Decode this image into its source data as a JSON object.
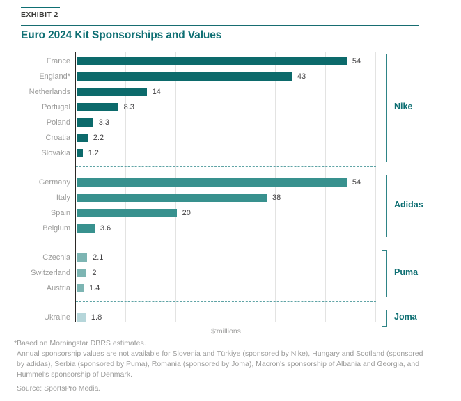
{
  "header": {
    "exhibit_label": "EXHIBIT 2",
    "title": "Euro 2024 Kit Sponsorships and Values"
  },
  "colors": {
    "accent_teal": "#0e6f73",
    "bracket_teal": "#2e8486",
    "separator_teal": "#5ea3a5",
    "gridline_gray": "#e3e3e2",
    "axis_black": "#2b2826",
    "country_label_gray": "#9c9c9b",
    "value_gray": "#414042",
    "footnote_gray": "#9b9b9a"
  },
  "chart_data": {
    "type": "bar",
    "orientation": "horizontal",
    "title": "Euro 2024 Kit Sponsorships and Values",
    "xlabel": "$'millions",
    "ylabel": "",
    "xlim": [
      0,
      60
    ],
    "gridlines": [
      10,
      20,
      30,
      40,
      50,
      60
    ],
    "grid": "vertical-only, no x tick labels",
    "legend_position": "right-brackets",
    "groups": [
      {
        "sponsor": "Nike",
        "color": "#0c6a6b",
        "countries": [
          {
            "label": "France",
            "value": 54,
            "display": "54"
          },
          {
            "label": "England*",
            "value": 43,
            "display": "43"
          },
          {
            "label": "Netherlands",
            "value": 14,
            "display": "14"
          },
          {
            "label": "Portugal",
            "value": 8.3,
            "display": "8.3"
          },
          {
            "label": "Poland",
            "value": 3.3,
            "display": "3.3"
          },
          {
            "label": "Croatia",
            "value": 2.2,
            "display": "2.2"
          },
          {
            "label": "Slovakia",
            "value": 1.2,
            "display": "1.2"
          }
        ]
      },
      {
        "sponsor": "Adidas",
        "color": "#38918e",
        "countries": [
          {
            "label": "Germany",
            "value": 54,
            "display": "54"
          },
          {
            "label": "Italy",
            "value": 38,
            "display": "38"
          },
          {
            "label": "Spain",
            "value": 20,
            "display": "20"
          },
          {
            "label": "Belgium",
            "value": 3.6,
            "display": "3.6"
          }
        ]
      },
      {
        "sponsor": "Puma",
        "color": "#7db5b3",
        "countries": [
          {
            "label": "Czechia",
            "value": 2.1,
            "display": "2.1"
          },
          {
            "label": "Switzerland",
            "value": 2,
            "display": "2"
          },
          {
            "label": "Austria",
            "value": 1.4,
            "display": "1.4"
          }
        ]
      },
      {
        "sponsor": "Joma",
        "color": "#b6d6da",
        "countries": [
          {
            "label": "Ukraine",
            "value": 1.8,
            "display": "1.8"
          }
        ]
      }
    ]
  },
  "footnotes": {
    "line1": "*Based on Morningstar DBRS estimates.",
    "body": "Annual sponsorship values are not available for Slovenia and Türkiye (sponsored by Nike), Hungary and Scotland (sponsored by adidas), Serbia (sponsored by Puma), Romania (sponsored by Joma), Macron's sponsorship of Albania and Georgia, and Hummel's sponsorship of Denmark.",
    "source": "Source: SportsPro Media."
  }
}
